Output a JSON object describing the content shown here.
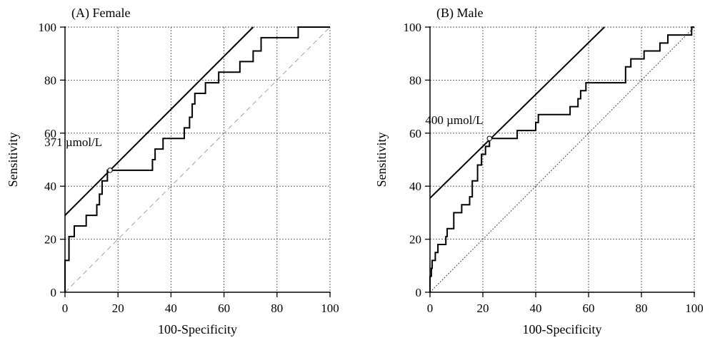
{
  "chart_data": [
    {
      "type": "line",
      "title": "(A) Female",
      "xlabel": "100-Specificity",
      "ylabel": "Sensitivity",
      "xlim": [
        0,
        100
      ],
      "ylim": [
        0,
        100
      ],
      "xticks": [
        0,
        20,
        40,
        60,
        80,
        100
      ],
      "yticks": [
        0,
        20,
        40,
        60,
        80,
        100
      ],
      "grid": true,
      "annotation": {
        "text": "371 µmol/L",
        "x": 17,
        "y": 46
      },
      "roc": [
        [
          0,
          0
        ],
        [
          0,
          12
        ],
        [
          1.5,
          12
        ],
        [
          1.5,
          21
        ],
        [
          3.5,
          21
        ],
        [
          3.5,
          25
        ],
        [
          8,
          25
        ],
        [
          8,
          29
        ],
        [
          12,
          29
        ],
        [
          12,
          33
        ],
        [
          13,
          33
        ],
        [
          13,
          37
        ],
        [
          14,
          37
        ],
        [
          14,
          42
        ],
        [
          16,
          42
        ],
        [
          16,
          46
        ],
        [
          33,
          46
        ],
        [
          33,
          50
        ],
        [
          34,
          50
        ],
        [
          34,
          54
        ],
        [
          37,
          54
        ],
        [
          37,
          58
        ],
        [
          45,
          58
        ],
        [
          45,
          62
        ],
        [
          47,
          62
        ],
        [
          47,
          66
        ],
        [
          48,
          66
        ],
        [
          48,
          71
        ],
        [
          49,
          71
        ],
        [
          49,
          75
        ],
        [
          53,
          75
        ],
        [
          53,
          79
        ],
        [
          58,
          79
        ],
        [
          58,
          83
        ],
        [
          66,
          83
        ],
        [
          66,
          87
        ],
        [
          71,
          87
        ],
        [
          71,
          91
        ],
        [
          74,
          91
        ],
        [
          74,
          96
        ],
        [
          88,
          96
        ],
        [
          88,
          100
        ],
        [
          100,
          100
        ]
      ],
      "tangent": [
        [
          0,
          29
        ],
        [
          71,
          100
        ]
      ],
      "diagonal": [
        [
          0,
          0
        ],
        [
          100,
          100
        ]
      ],
      "cutoff_point": [
        17,
        46
      ]
    },
    {
      "type": "line",
      "title": "(B) Male",
      "xlabel": "100-Specificity",
      "ylabel": "Sensitivity",
      "xlim": [
        0,
        100
      ],
      "ylim": [
        0,
        100
      ],
      "xticks": [
        0,
        20,
        40,
        60,
        80,
        100
      ],
      "yticks": [
        0,
        20,
        40,
        60,
        80,
        100
      ],
      "grid": true,
      "annotation": {
        "text": "400 µmol/L",
        "x": 22,
        "y": 58
      },
      "roc": [
        [
          0,
          0
        ],
        [
          0,
          6
        ],
        [
          0.5,
          6
        ],
        [
          0.5,
          9
        ],
        [
          0.8,
          9
        ],
        [
          0.8,
          12
        ],
        [
          2,
          12
        ],
        [
          2,
          15
        ],
        [
          3,
          15
        ],
        [
          3,
          18
        ],
        [
          6,
          18
        ],
        [
          6,
          21
        ],
        [
          6.5,
          21
        ],
        [
          6.5,
          24
        ],
        [
          9,
          24
        ],
        [
          9,
          30
        ],
        [
          12,
          30
        ],
        [
          12,
          33
        ],
        [
          15,
          33
        ],
        [
          15,
          36
        ],
        [
          16,
          36
        ],
        [
          16,
          42
        ],
        [
          18,
          42
        ],
        [
          18,
          48
        ],
        [
          19.5,
          48
        ],
        [
          19.5,
          52
        ],
        [
          21,
          52
        ],
        [
          21,
          55
        ],
        [
          22.5,
          55
        ],
        [
          22.5,
          58
        ],
        [
          33,
          58
        ],
        [
          33,
          61
        ],
        [
          40,
          61
        ],
        [
          40,
          64
        ],
        [
          41,
          64
        ],
        [
          41,
          67
        ],
        [
          53,
          67
        ],
        [
          53,
          70
        ],
        [
          56,
          70
        ],
        [
          56,
          73
        ],
        [
          57,
          73
        ],
        [
          57,
          76
        ],
        [
          59,
          76
        ],
        [
          59,
          79
        ],
        [
          74,
          79
        ],
        [
          74,
          85
        ],
        [
          76,
          85
        ],
        [
          76,
          88
        ],
        [
          81,
          88
        ],
        [
          81,
          91
        ],
        [
          87,
          91
        ],
        [
          87,
          94
        ],
        [
          90,
          94
        ],
        [
          90,
          97
        ],
        [
          99,
          97
        ],
        [
          99,
          100
        ],
        [
          100,
          100
        ]
      ],
      "tangent": [
        [
          0,
          35.5
        ],
        [
          66,
          100
        ]
      ],
      "diagonal": [
        [
          0,
          0
        ],
        [
          100,
          100
        ]
      ],
      "cutoff_point": [
        22.5,
        58
      ]
    }
  ]
}
